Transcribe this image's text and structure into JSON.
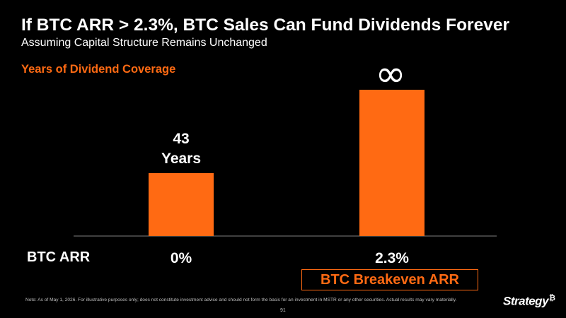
{
  "header": {
    "title": "If BTC ARR > 2.3%, BTC Sales Can Fund Dividends Forever",
    "subtitle": "Assuming Capital Structure Remains Unchanged",
    "section_label": "Years of Dividend Coverage"
  },
  "chart_data": {
    "type": "bar",
    "xlabel": "BTC ARR",
    "ylabel": "",
    "categories": [
      "0%",
      "2.3%"
    ],
    "values": [
      43,
      "∞"
    ],
    "data_labels": [
      [
        "43",
        "Years"
      ],
      [
        "∞"
      ]
    ],
    "infinite": [
      false,
      true
    ],
    "grid": false,
    "bar_color": "#ff6a13",
    "annotations": [
      {
        "text": "BTC Breakeven ARR",
        "category": "2.3%"
      }
    ]
  },
  "footer": {
    "note": "Note: As of May 1, 2026. For illustrative purposes only; does not constitute investment advice and should not form the basis for an investment in MSTR or any other securities. Actual results may vary materially.",
    "page_number": "91",
    "logo_text": "Strategy",
    "logo_mark": "₿"
  },
  "colors": {
    "accent": "#ff6a13",
    "background": "#000000",
    "text": "#ffffff"
  }
}
